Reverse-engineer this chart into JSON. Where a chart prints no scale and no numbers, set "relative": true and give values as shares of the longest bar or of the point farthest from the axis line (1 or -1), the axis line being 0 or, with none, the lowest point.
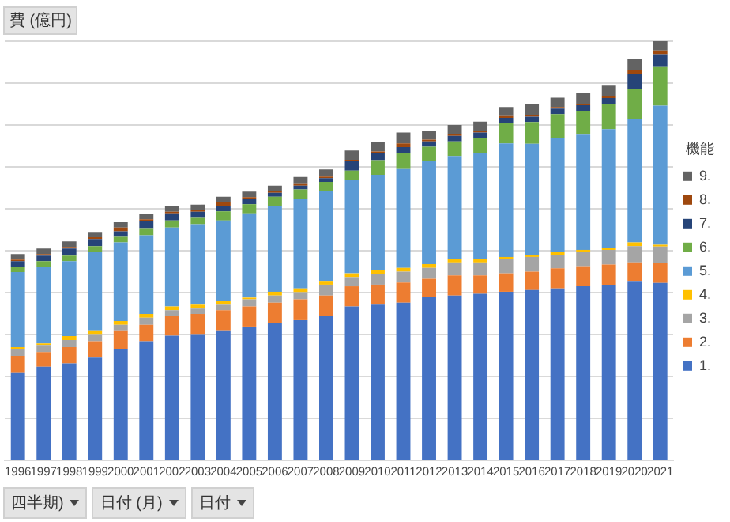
{
  "chart_data": {
    "type": "bar",
    "stacked": true,
    "relative": true,
    "title": "費 (億円)",
    "legend_title": "機能",
    "legend": "right",
    "grid": "y",
    "categories": [
      "1996",
      "1997",
      "1998",
      "1999",
      "2000",
      "2001",
      "2002",
      "2003",
      "2004",
      "2005",
      "2006",
      "2007",
      "2008",
      "2009",
      "2010",
      "2011",
      "2012",
      "2013",
      "2014",
      "2015",
      "2016",
      "2017",
      "2018",
      "2019",
      "2020",
      "2021"
    ],
    "series": [
      {
        "name": "1.",
        "color": "#4472c4",
        "values": [
          0.21,
          0.223,
          0.231,
          0.245,
          0.266,
          0.284,
          0.297,
          0.301,
          0.31,
          0.319,
          0.328,
          0.336,
          0.345,
          0.367,
          0.371,
          0.376,
          0.389,
          0.393,
          0.397,
          0.402,
          0.406,
          0.41,
          0.415,
          0.419,
          0.428,
          0.423
        ]
      },
      {
        "name": "2.",
        "color": "#ed7d31",
        "values": [
          0.039,
          0.035,
          0.039,
          0.039,
          0.044,
          0.039,
          0.048,
          0.048,
          0.048,
          0.048,
          0.048,
          0.048,
          0.048,
          0.048,
          0.048,
          0.048,
          0.044,
          0.048,
          0.044,
          0.044,
          0.044,
          0.048,
          0.048,
          0.048,
          0.044,
          0.048
        ]
      },
      {
        "name": "3.",
        "color": "#a5a5a5",
        "values": [
          0.017,
          0.017,
          0.017,
          0.017,
          0.013,
          0.017,
          0.013,
          0.013,
          0.013,
          0.017,
          0.017,
          0.017,
          0.026,
          0.022,
          0.026,
          0.026,
          0.026,
          0.031,
          0.031,
          0.035,
          0.035,
          0.031,
          0.035,
          0.035,
          0.039,
          0.039
        ]
      },
      {
        "name": "4.",
        "color": "#ffc000",
        "values": [
          0.004,
          0.004,
          0.009,
          0.009,
          0.009,
          0.009,
          0.009,
          0.009,
          0.009,
          0.004,
          0.009,
          0.009,
          0.009,
          0.009,
          0.009,
          0.009,
          0.009,
          0.009,
          0.009,
          0.004,
          0.004,
          0.009,
          0.004,
          0.004,
          0.009,
          0.004
        ]
      },
      {
        "name": "5.",
        "color": "#5b9bd5",
        "values": [
          0.179,
          0.183,
          0.179,
          0.188,
          0.188,
          0.188,
          0.188,
          0.192,
          0.192,
          0.201,
          0.205,
          0.214,
          0.214,
          0.223,
          0.227,
          0.236,
          0.245,
          0.245,
          0.253,
          0.271,
          0.266,
          0.271,
          0.275,
          0.284,
          0.293,
          0.332
        ]
      },
      {
        "name": "6.",
        "color": "#70ad47",
        "values": [
          0.013,
          0.013,
          0.013,
          0.013,
          0.013,
          0.017,
          0.017,
          0.017,
          0.022,
          0.022,
          0.022,
          0.022,
          0.022,
          0.022,
          0.035,
          0.039,
          0.035,
          0.035,
          0.035,
          0.048,
          0.052,
          0.057,
          0.057,
          0.061,
          0.074,
          0.092
        ]
      },
      {
        "name": "7.",
        "color": "#264478",
        "values": [
          0.013,
          0.013,
          0.017,
          0.017,
          0.013,
          0.017,
          0.017,
          0.013,
          0.013,
          0.013,
          0.009,
          0.009,
          0.009,
          0.022,
          0.017,
          0.013,
          0.013,
          0.013,
          0.013,
          0.013,
          0.013,
          0.013,
          0.013,
          0.013,
          0.035,
          0.031
        ]
      },
      {
        "name": "8.",
        "color": "#9e480e",
        "values": [
          0.004,
          0.004,
          0.004,
          0.004,
          0.009,
          0.004,
          0.004,
          0.004,
          0.009,
          0.004,
          0.004,
          0.004,
          0.004,
          0.004,
          0.004,
          0.009,
          0.004,
          0.004,
          0.004,
          0.004,
          0.004,
          0.004,
          0.004,
          0.004,
          0.009,
          0.009
        ]
      },
      {
        "name": "9.",
        "color": "#636363",
        "values": [
          0.013,
          0.013,
          0.013,
          0.013,
          0.013,
          0.013,
          0.013,
          0.013,
          0.013,
          0.013,
          0.013,
          0.017,
          0.017,
          0.022,
          0.022,
          0.026,
          0.022,
          0.022,
          0.022,
          0.022,
          0.026,
          0.022,
          0.026,
          0.026,
          0.026,
          0.022
        ]
      }
    ],
    "annotations": [
      "四半期)",
      "日付 (月)",
      "日付"
    ]
  }
}
